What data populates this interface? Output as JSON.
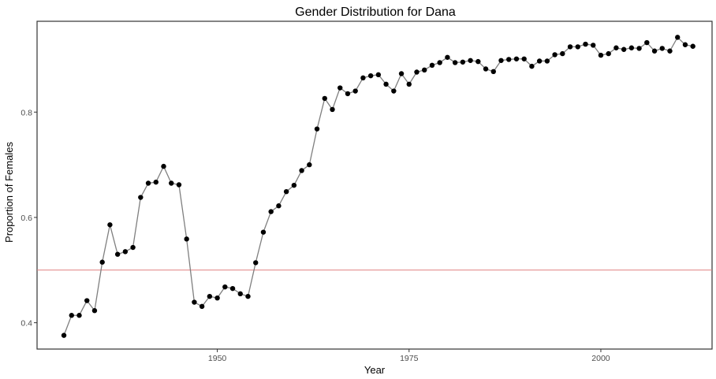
{
  "chart_data": {
    "type": "line",
    "title": "Gender Distribution for Dana",
    "xlabel": "Year",
    "ylabel": "Proportion of Females",
    "xlim": [
      1926.5,
      2014.5
    ],
    "ylim": [
      0.35,
      0.9725
    ],
    "x_ticks": [
      1950,
      1975,
      2000
    ],
    "x_tick_labels": [
      "1950",
      "1975",
      "2000"
    ],
    "y_ticks": [
      0.4,
      0.6,
      0.8
    ],
    "y_tick_labels": [
      "0.4",
      "0.6",
      "0.8"
    ],
    "reference_line": {
      "y": 0.5,
      "color": "#e08080"
    },
    "grid": false,
    "legend": "none",
    "line_color": "#7f7f7f",
    "point_color": "#000000",
    "series": [
      {
        "x": [
          1930,
          1931,
          1932,
          1933,
          1934,
          1935,
          1936,
          1937,
          1938,
          1939,
          1940,
          1941,
          1942,
          1943,
          1944,
          1945,
          1946,
          1947,
          1948,
          1949,
          1950,
          1951,
          1952,
          1953,
          1954,
          1955,
          1956,
          1957,
          1958,
          1959,
          1960,
          1961,
          1962,
          1963,
          1964,
          1965,
          1966,
          1967,
          1968,
          1969,
          1970,
          1971,
          1972,
          1973,
          1974,
          1975,
          1976,
          1977,
          1978,
          1979,
          1980,
          1981,
          1982,
          1983,
          1984,
          1985,
          1986,
          1987,
          1988,
          1989,
          1990,
          1991,
          1992,
          1993,
          1994,
          1995,
          1996,
          1997,
          1998,
          1999,
          2000,
          2001,
          2002,
          2003,
          2004,
          2005,
          2006,
          2007,
          2008,
          2009,
          2010,
          2011,
          2012
        ],
        "y": [
          0.376,
          0.414,
          0.414,
          0.442,
          0.423,
          0.515,
          0.586,
          0.53,
          0.535,
          0.543,
          0.638,
          0.665,
          0.667,
          0.697,
          0.665,
          0.662,
          0.559,
          0.439,
          0.431,
          0.45,
          0.447,
          0.468,
          0.465,
          0.455,
          0.45,
          0.514,
          0.572,
          0.611,
          0.622,
          0.649,
          0.661,
          0.689,
          0.7,
          0.768,
          0.826,
          0.805,
          0.846,
          0.835,
          0.84,
          0.865,
          0.869,
          0.871,
          0.853,
          0.84,
          0.873,
          0.853,
          0.876,
          0.88,
          0.889,
          0.894,
          0.904,
          0.894,
          0.895,
          0.898,
          0.896,
          0.882,
          0.877,
          0.898,
          0.9,
          0.901,
          0.901,
          0.887,
          0.897,
          0.897,
          0.909,
          0.911,
          0.924,
          0.924,
          0.929,
          0.927,
          0.908,
          0.911,
          0.922,
          0.919,
          0.922,
          0.921,
          0.932,
          0.916,
          0.921,
          0.916,
          0.942,
          0.928,
          0.925
        ]
      }
    ]
  }
}
